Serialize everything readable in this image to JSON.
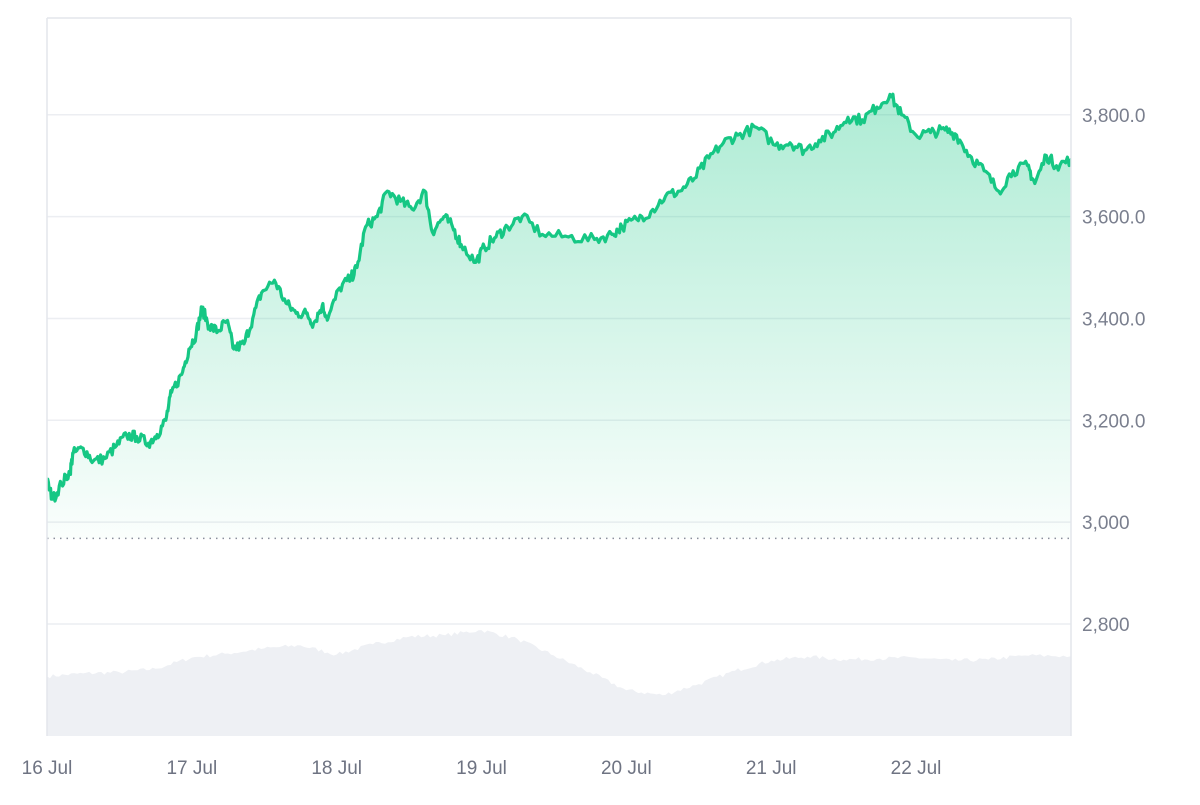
{
  "colors": {
    "line": "#16c784",
    "area_top": "#16c784",
    "grid": "#eceef2",
    "frame": "#e3e6ec",
    "baseline": "#8a8f9c",
    "volume": "#eef0f4",
    "tick_text": "#7a7f8e"
  },
  "chart_data": {
    "type": "area",
    "title": "",
    "xlabel": "",
    "ylabel": "",
    "y_axis_position": "right",
    "grid": "horizontal",
    "legend": "none",
    "ylim": [
      2580,
      3990
    ],
    "yticks": [
      {
        "value": 3800,
        "label": "3,800.0"
      },
      {
        "value": 3600,
        "label": "3,600.0"
      },
      {
        "value": 3400,
        "label": "3,400.0"
      },
      {
        "value": 3200,
        "label": "3,200.0"
      },
      {
        "value": 3000,
        "label": "3,000"
      },
      {
        "value": 2800,
        "label": "2,800"
      }
    ],
    "xlim": [
      0,
      7.07
    ],
    "xticks": [
      {
        "value": 0,
        "label": "16 Jul"
      },
      {
        "value": 1,
        "label": "17 Jul"
      },
      {
        "value": 2,
        "label": "18 Jul"
      },
      {
        "value": 3,
        "label": "19 Jul"
      },
      {
        "value": 4,
        "label": "20 Jul"
      },
      {
        "value": 5,
        "label": "21 Jul"
      },
      {
        "value": 6,
        "label": "22 Jul"
      }
    ],
    "baseline_value": 2968,
    "series": [
      {
        "type": "area-line",
        "points": [
          [
            0.0,
            3080
          ],
          [
            0.04,
            3045
          ],
          [
            0.1,
            3075
          ],
          [
            0.16,
            3100
          ],
          [
            0.18,
            3135
          ],
          [
            0.25,
            3145
          ],
          [
            0.32,
            3120
          ],
          [
            0.4,
            3125
          ],
          [
            0.48,
            3150
          ],
          [
            0.55,
            3170
          ],
          [
            0.62,
            3168
          ],
          [
            0.7,
            3155
          ],
          [
            0.76,
            3172
          ],
          [
            0.82,
            3200
          ],
          [
            0.86,
            3255
          ],
          [
            0.93,
            3290
          ],
          [
            0.98,
            3340
          ],
          [
            1.03,
            3370
          ],
          [
            1.07,
            3420
          ],
          [
            1.12,
            3385
          ],
          [
            1.18,
            3375
          ],
          [
            1.24,
            3395
          ],
          [
            1.29,
            3340
          ],
          [
            1.36,
            3350
          ],
          [
            1.42,
            3400
          ],
          [
            1.48,
            3450
          ],
          [
            1.57,
            3475
          ],
          [
            1.65,
            3430
          ],
          [
            1.72,
            3410
          ],
          [
            1.79,
            3410
          ],
          [
            1.84,
            3390
          ],
          [
            1.9,
            3425
          ],
          [
            1.94,
            3400
          ],
          [
            2.02,
            3460
          ],
          [
            2.1,
            3480
          ],
          [
            2.14,
            3500
          ],
          [
            2.2,
            3580
          ],
          [
            2.28,
            3600
          ],
          [
            2.35,
            3650
          ],
          [
            2.44,
            3630
          ],
          [
            2.52,
            3615
          ],
          [
            2.61,
            3650
          ],
          [
            2.66,
            3570
          ],
          [
            2.74,
            3600
          ],
          [
            2.8,
            3580
          ],
          [
            2.86,
            3545
          ],
          [
            2.96,
            3510
          ],
          [
            3.02,
            3540
          ],
          [
            3.1,
            3560
          ],
          [
            3.18,
            3580
          ],
          [
            3.28,
            3600
          ],
          [
            3.42,
            3565
          ],
          [
            3.6,
            3560
          ],
          [
            3.78,
            3555
          ],
          [
            3.9,
            3565
          ],
          [
            3.97,
            3580
          ],
          [
            4.07,
            3595
          ],
          [
            4.17,
            3610
          ],
          [
            4.27,
            3640
          ],
          [
            4.37,
            3650
          ],
          [
            4.47,
            3675
          ],
          [
            4.57,
            3715
          ],
          [
            4.67,
            3745
          ],
          [
            4.77,
            3760
          ],
          [
            4.9,
            3775
          ],
          [
            5.03,
            3740
          ],
          [
            5.13,
            3745
          ],
          [
            5.23,
            3730
          ],
          [
            5.33,
            3750
          ],
          [
            5.43,
            3765
          ],
          [
            5.53,
            3795
          ],
          [
            5.63,
            3790
          ],
          [
            5.73,
            3815
          ],
          [
            5.82,
            3840
          ],
          [
            5.9,
            3800
          ],
          [
            6.0,
            3760
          ],
          [
            6.1,
            3765
          ],
          [
            6.2,
            3770
          ],
          [
            6.28,
            3760
          ],
          [
            6.37,
            3720
          ],
          [
            6.47,
            3690
          ],
          [
            6.57,
            3650
          ],
          [
            6.67,
            3690
          ],
          [
            6.77,
            3700
          ],
          [
            6.82,
            3665
          ],
          [
            6.9,
            3720
          ],
          [
            6.97,
            3700
          ],
          [
            7.07,
            3712
          ]
        ]
      },
      {
        "type": "volume",
        "points": [
          [
            0.0,
            2697
          ],
          [
            0.25,
            2703
          ],
          [
            0.5,
            2705
          ],
          [
            0.75,
            2712
          ],
          [
            1.0,
            2734
          ],
          [
            1.25,
            2742
          ],
          [
            1.5,
            2752
          ],
          [
            1.75,
            2758
          ],
          [
            2.0,
            2740
          ],
          [
            2.25,
            2760
          ],
          [
            2.5,
            2775
          ],
          [
            2.75,
            2778
          ],
          [
            3.0,
            2788
          ],
          [
            3.25,
            2770
          ],
          [
            3.5,
            2738
          ],
          [
            3.75,
            2705
          ],
          [
            4.0,
            2670
          ],
          [
            4.25,
            2660
          ],
          [
            4.5,
            2682
          ],
          [
            4.75,
            2708
          ],
          [
            5.0,
            2728
          ],
          [
            5.25,
            2736
          ],
          [
            5.5,
            2730
          ],
          [
            5.75,
            2732
          ],
          [
            6.0,
            2734
          ],
          [
            6.25,
            2728
          ],
          [
            6.5,
            2730
          ],
          [
            6.75,
            2738
          ],
          [
            7.07,
            2737
          ]
        ]
      }
    ]
  }
}
